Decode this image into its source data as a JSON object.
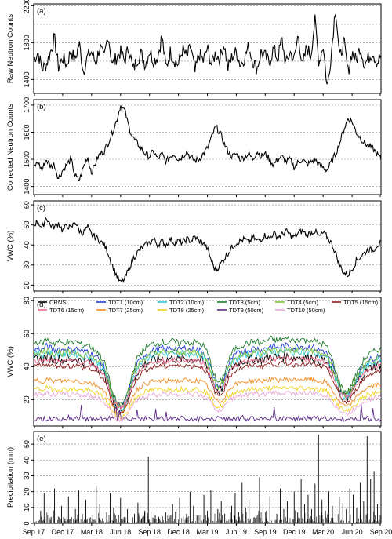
{
  "chart_data": {
    "type": "line",
    "x_axis": {
      "tick_labels": [
        "Sep 17",
        "Dec 17",
        "Mar 18",
        "Jun 18",
        "Sep 18",
        "Dec 18",
        "Mar 19",
        "Jun 19",
        "Sep 19",
        "Dec 19",
        "Mar 20",
        "Jun 20",
        "Sep 20"
      ],
      "range": [
        "2017-09",
        "2020-09"
      ]
    },
    "panels": [
      {
        "id": "a",
        "panel_label": "(a)",
        "ylabel": "Raw Neutron Counts",
        "ylim": [
          1250,
          2220
        ],
        "yticks": [
          1400,
          1800,
          2200
        ],
        "gridlines": [
          1400,
          1600,
          1800,
          2000,
          2200
        ],
        "grid": true,
        "series": [
          {
            "name": "",
            "color": "#000000",
            "values": [
              1610,
              1700,
              1520,
              1560,
              1690,
              1850,
              1530,
              1640,
              1560,
              1720,
              1600,
              1800,
              1490,
              1650,
              1700,
              1580,
              1760,
              1620,
              1900,
              1550,
              1640,
              1700,
              1600,
              1760,
              1500,
              1620,
              1680,
              1560,
              1720,
              1600,
              1650,
              1870,
              1520,
              1700,
              1610,
              1560,
              1730,
              1640,
              1760,
              1470,
              1680,
              1600,
              1740,
              1560,
              1690,
              1620,
              1800,
              1520,
              1650,
              1700,
              1560,
              1640,
              1760,
              1600,
              1520,
              1700,
              1650,
              1580,
              1740,
              1620,
              1840,
              1560,
              1700,
              1610,
              1900,
              1520,
              1760,
              1650,
              2050,
              1580,
              1780,
              1300,
              1700,
              2200,
              1620,
              1820,
              1480,
              1700,
              1600,
              1760,
              1560,
              1640,
              1700,
              1580,
              1660
            ]
          }
        ]
      },
      {
        "id": "b",
        "panel_label": "(b)",
        "ylabel": "Corrected Neutron Counts",
        "ylim": [
          1370,
          1720
        ],
        "yticks": [
          1400,
          1500,
          1600,
          1700
        ],
        "gridlines": [
          1400,
          1500,
          1600,
          1700
        ],
        "grid": true,
        "series": [
          {
            "name": "",
            "color": "#000000",
            "values": [
              1470,
              1490,
              1460,
              1500,
              1475,
              1480,
              1430,
              1460,
              1480,
              1500,
              1440,
              1420,
              1470,
              1510,
              1450,
              1490,
              1520,
              1530,
              1560,
              1600,
              1640,
              1700,
              1680,
              1620,
              1580,
              1560,
              1540,
              1520,
              1510,
              1530,
              1500,
              1520,
              1490,
              1510,
              1520,
              1500,
              1510,
              1530,
              1505,
              1495,
              1500,
              1520,
              1540,
              1580,
              1620,
              1600,
              1560,
              1530,
              1510,
              1520,
              1500,
              1510,
              1520,
              1500,
              1530,
              1510,
              1520,
              1500,
              1480,
              1500,
              1510,
              1490,
              1500,
              1470,
              1490,
              1500,
              1480,
              1490,
              1500,
              1480,
              1470,
              1460,
              1490,
              1520,
              1560,
              1610,
              1650,
              1640,
              1600,
              1580,
              1560,
              1550,
              1540,
              1520,
              1500
            ]
          }
        ]
      },
      {
        "id": "c",
        "panel_label": "(c)",
        "ylabel": "VWC (%)",
        "ylim": [
          17,
          62
        ],
        "yticks": [
          20,
          30,
          40,
          50,
          60
        ],
        "gridlines": [
          20,
          30,
          40,
          50,
          60
        ],
        "grid": true,
        "series": [
          {
            "name": "",
            "color": "#000000",
            "values": [
              50,
              52,
              48,
              54,
              50,
              49,
              51,
              47,
              50,
              48,
              52,
              47,
              46,
              49,
              45,
              44,
              42,
              40,
              36,
              30,
              25,
              21,
              23,
              28,
              33,
              36,
              38,
              40,
              41,
              43,
              40,
              42,
              40,
              43,
              41,
              42,
              41,
              43,
              42,
              44,
              42,
              41,
              38,
              32,
              27,
              30,
              33,
              36,
              39,
              41,
              42,
              43,
              41,
              44,
              42,
              43,
              45,
              43,
              46,
              44,
              45,
              47,
              45,
              44,
              46,
              47,
              45,
              46,
              47,
              44,
              46,
              44,
              41,
              36,
              30,
              26,
              25,
              28,
              32,
              34,
              36,
              38,
              37,
              40,
              41
            ]
          }
        ]
      },
      {
        "id": "d",
        "panel_label": "(d)",
        "ylabel": "VWC (%)",
        "ylim": [
          4,
          82
        ],
        "yticks": [
          20,
          40,
          60,
          80
        ],
        "gridlines": [
          20,
          40,
          60,
          80
        ],
        "grid": true,
        "legend_position": "top",
        "series_profiles": {
          "note": "",
          "base": [
            40,
            41,
            40,
            42,
            41,
            40,
            41,
            40,
            41,
            40,
            41,
            40,
            39,
            40,
            38,
            37,
            35,
            32,
            26,
            18,
            14,
            12,
            14,
            20,
            28,
            33,
            36,
            38,
            39,
            40,
            40,
            41,
            40,
            41,
            41,
            40,
            41,
            41,
            40,
            41,
            40,
            39,
            36,
            30,
            24,
            22,
            26,
            32,
            36,
            38,
            39,
            40,
            40,
            41,
            41,
            40,
            41,
            42,
            42,
            41,
            42,
            42,
            42,
            41,
            42,
            42,
            41,
            42,
            41,
            40,
            40,
            38,
            34,
            28,
            22,
            19,
            18,
            22,
            26,
            30,
            33,
            35,
            36,
            37,
            38
          ]
        },
        "series": [
          {
            "name": "CRNS",
            "color": "#000000",
            "scale": 1.05,
            "offset": 2,
            "noise": 3
          },
          {
            "name": "TDT1 (10cm)",
            "color": "#1f3bd6",
            "scale": 1.25,
            "offset": 0,
            "noise": 2
          },
          {
            "name": "TDT2 (10cm)",
            "color": "#2fc7d8",
            "scale": 1.2,
            "offset": -1,
            "noise": 2
          },
          {
            "name": "TDT3 (5cm)",
            "color": "#1c7a2a",
            "scale": 1.35,
            "offset": 0,
            "noise": 2
          },
          {
            "name": "TDT4 (5cm)",
            "color": "#7dc23a",
            "scale": 1.15,
            "offset": 2,
            "noise": 2
          },
          {
            "name": "TDT5 (15cm)",
            "color": "#8b1a1a",
            "scale": 1.0,
            "offset": 0,
            "noise": 1.5
          },
          {
            "name": "TDT6 (15cm)",
            "color": "#ee6a8a",
            "scale": 1.0,
            "offset": 3,
            "noise": 1.5
          },
          {
            "name": "TDT7 (25cm)",
            "color": "#f08a1e",
            "scale": 0.7,
            "offset": 3,
            "noise": 1.5
          },
          {
            "name": "TDT8 (25cm)",
            "color": "#f2d21b",
            "scale": 0.6,
            "offset": 2,
            "noise": 1.5
          },
          {
            "name": "TDT9 (50cm)",
            "color": "#5b2a86",
            "scale": 0.12,
            "offset": 6,
            "noise": 1
          },
          {
            "name": "TDT10 (50cm)",
            "color": "#e8a5d6",
            "scale": 0.55,
            "offset": 1,
            "noise": 1.5
          }
        ]
      },
      {
        "id": "e",
        "panel_label": "(e)",
        "ylabel": "Precipitation (mm)",
        "ylim": [
          0,
          58
        ],
        "yticks": [
          0,
          10,
          20,
          30,
          40,
          50
        ],
        "gridlines": [
          10,
          20,
          30,
          40,
          50
        ],
        "grid": true,
        "bars": {
          "color": "#000000",
          "events": [
            [
              0.02,
              8
            ],
            [
              0.03,
              19
            ],
            [
              0.05,
              4
            ],
            [
              0.06,
              22
            ],
            [
              0.08,
              11
            ],
            [
              0.09,
              3
            ],
            [
              0.1,
              17
            ],
            [
              0.12,
              9
            ],
            [
              0.13,
              21
            ],
            [
              0.14,
              6
            ],
            [
              0.15,
              15
            ],
            [
              0.17,
              5
            ],
            [
              0.18,
              24
            ],
            [
              0.19,
              12
            ],
            [
              0.21,
              7
            ],
            [
              0.22,
              19
            ],
            [
              0.23,
              10
            ],
            [
              0.25,
              16
            ],
            [
              0.26,
              4
            ],
            [
              0.27,
              9
            ],
            [
              0.29,
              6
            ],
            [
              0.3,
              13
            ],
            [
              0.31,
              3
            ],
            [
              0.32,
              8
            ],
            [
              0.33,
              42
            ],
            [
              0.35,
              5
            ],
            [
              0.36,
              4
            ],
            [
              0.38,
              7
            ],
            [
              0.4,
              12
            ],
            [
              0.41,
              9
            ],
            [
              0.42,
              16
            ],
            [
              0.44,
              6
            ],
            [
              0.45,
              20
            ],
            [
              0.46,
              11
            ],
            [
              0.47,
              5
            ],
            [
              0.49,
              18
            ],
            [
              0.5,
              8
            ],
            [
              0.51,
              21
            ],
            [
              0.53,
              9
            ],
            [
              0.54,
              14
            ],
            [
              0.55,
              6
            ],
            [
              0.57,
              11
            ],
            [
              0.58,
              19
            ],
            [
              0.59,
              7
            ],
            [
              0.6,
              26
            ],
            [
              0.61,
              10
            ],
            [
              0.62,
              15
            ],
            [
              0.64,
              5
            ],
            [
              0.65,
              29
            ],
            [
              0.66,
              12
            ],
            [
              0.67,
              8
            ],
            [
              0.68,
              17
            ],
            [
              0.7,
              6
            ],
            [
              0.71,
              22
            ],
            [
              0.72,
              9
            ],
            [
              0.73,
              14
            ],
            [
              0.75,
              20
            ],
            [
              0.76,
              7
            ],
            [
              0.77,
              28
            ],
            [
              0.78,
              12
            ],
            [
              0.79,
              18
            ],
            [
              0.8,
              9
            ],
            [
              0.81,
              25
            ],
            [
              0.82,
              56
            ],
            [
              0.83,
              15
            ],
            [
              0.84,
              8
            ],
            [
              0.85,
              20
            ],
            [
              0.86,
              11
            ],
            [
              0.87,
              6
            ],
            [
              0.88,
              17
            ],
            [
              0.89,
              13
            ],
            [
              0.9,
              9
            ],
            [
              0.91,
              22
            ],
            [
              0.92,
              18
            ],
            [
              0.93,
              10
            ],
            [
              0.94,
              26
            ],
            [
              0.95,
              14
            ],
            [
              0.96,
              55
            ],
            [
              0.97,
              28
            ],
            [
              0.98,
              33
            ],
            [
              0.99,
              12
            ]
          ]
        }
      }
    ]
  }
}
